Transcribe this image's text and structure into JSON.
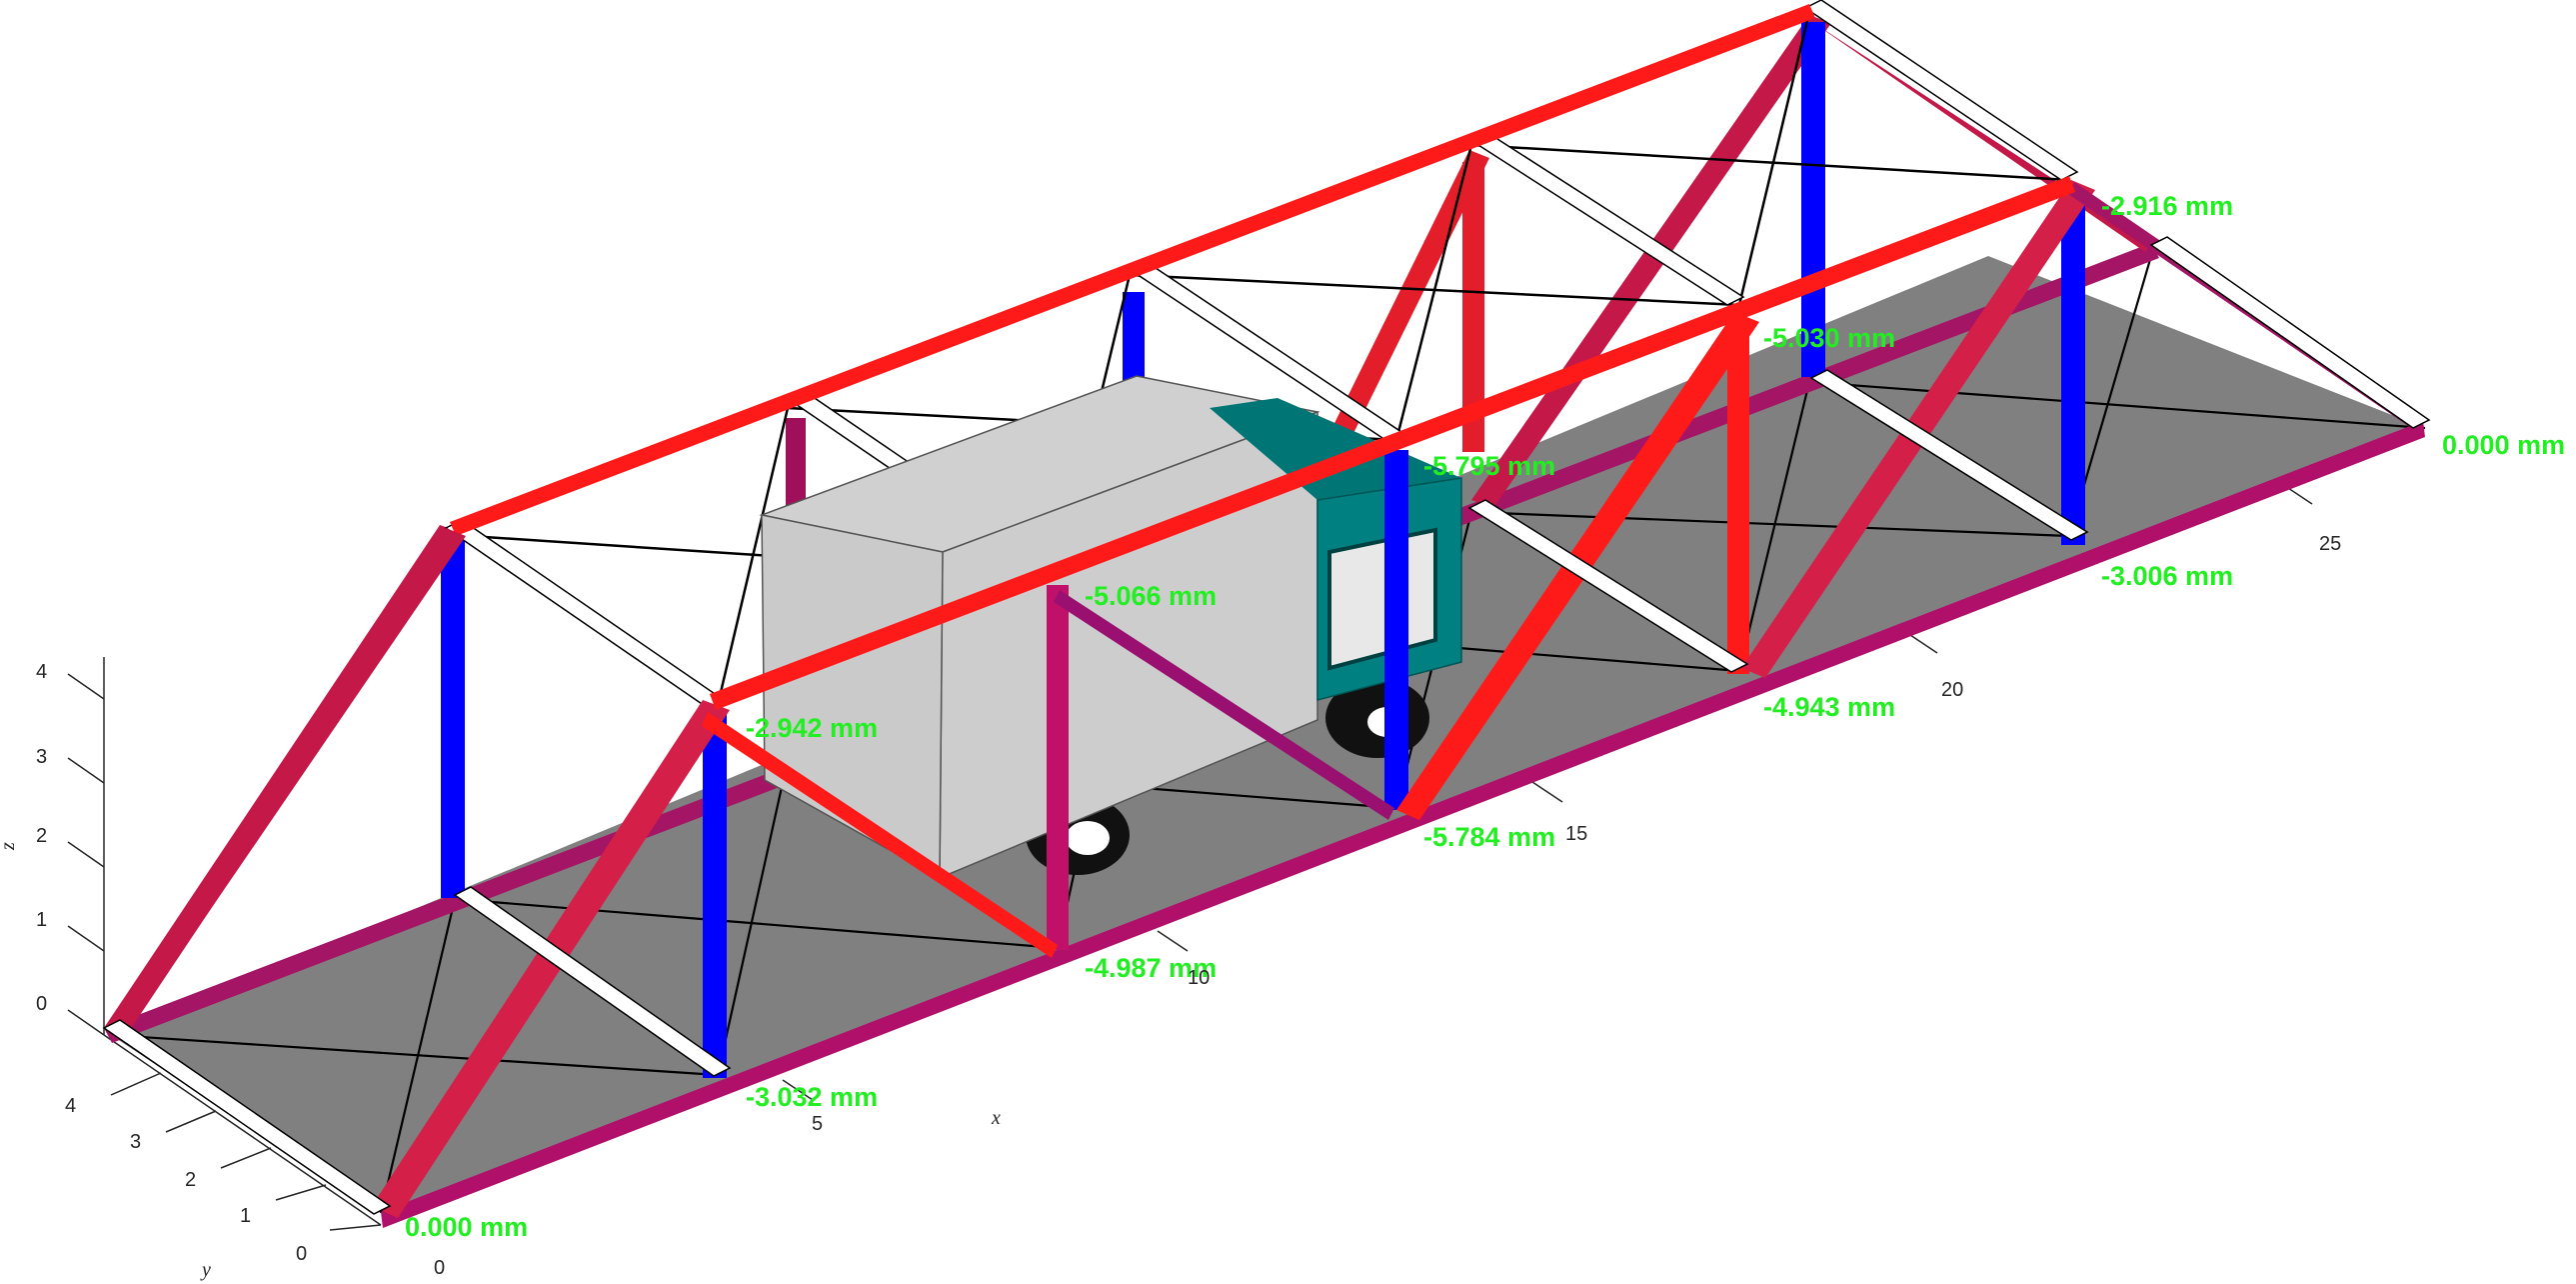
{
  "figure": {
    "displacement_labels": [
      "0.000 mm",
      "-3.032 mm",
      "-2.942 mm",
      "-4.987 mm",
      "-5.066 mm",
      "-5.784 mm",
      "-5.795 mm",
      "-4.943 mm",
      "-5.030 mm",
      "-3.006 mm",
      "-2.916 mm",
      "0.000 mm"
    ],
    "axes": {
      "x": {
        "label": "x",
        "ticks": [
          "0",
          "5",
          "10",
          "15",
          "20",
          "25"
        ]
      },
      "y": {
        "label": "y",
        "ticks": [
          "0",
          "1",
          "2",
          "3",
          "4"
        ]
      },
      "z": {
        "label": "z",
        "ticks": [
          "0",
          "1",
          "2",
          "3",
          "4"
        ]
      }
    },
    "colors": {
      "top_chord": "#ff1a1a",
      "diagonal": "#c41848",
      "bottom_chord": "#b0106a",
      "vertical": "#0000ff",
      "deck": "#808080",
      "truck_box": "#cccccc",
      "truck_cab": "#008080",
      "label": "#22ee22"
    }
  }
}
